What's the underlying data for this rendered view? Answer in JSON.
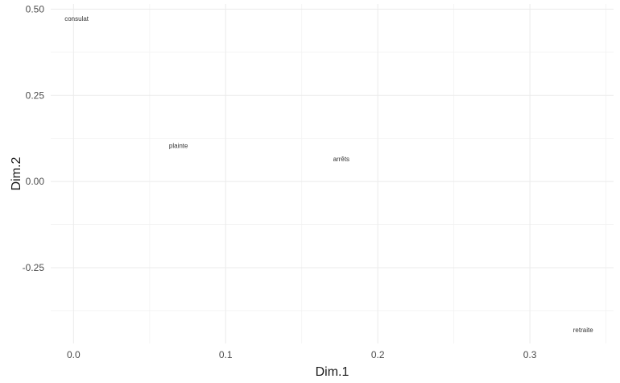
{
  "chart_data": {
    "type": "scatter",
    "title": "",
    "xlabel": "Dim.1",
    "ylabel": "Dim.2",
    "xlim": [
      -0.015,
      0.355
    ],
    "ylim": [
      -0.47,
      0.515
    ],
    "x_ticks": [
      0.0,
      0.1,
      0.2,
      0.3
    ],
    "x_tick_labels": [
      "0.0",
      "0.1",
      "0.2",
      "0.3"
    ],
    "y_ticks": [
      -0.25,
      0.0,
      0.25,
      0.5
    ],
    "y_tick_labels": [
      "-0.25",
      "0.00",
      "0.25",
      "0.50"
    ],
    "grid": true,
    "points": [
      {
        "label": "consulat",
        "x": 0.002,
        "y": 0.473
      },
      {
        "label": "plainte",
        "x": 0.069,
        "y": 0.104
      },
      {
        "label": "arrêts",
        "x": 0.176,
        "y": 0.066
      },
      {
        "label": "retraite",
        "x": 0.335,
        "y": -0.43
      }
    ],
    "colors": {
      "background": "#ffffff",
      "grid_major": "#ebebeb",
      "grid_minor": "#f2f2f2",
      "text": "#333333"
    }
  }
}
